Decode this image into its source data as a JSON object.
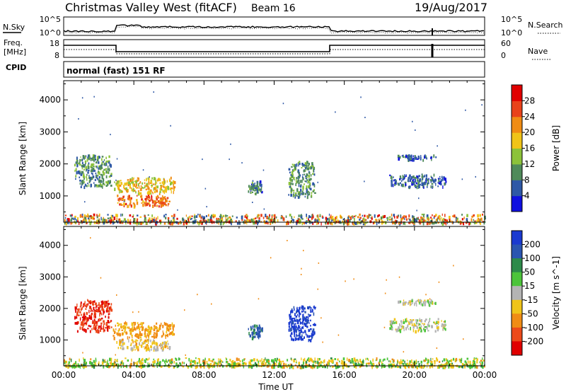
{
  "header": {
    "station": "Christmas Valley West (fitACF)",
    "beam": "Beam 16",
    "date": "19/Aug/2017"
  },
  "strip_labels": {
    "nsky": "N.Sky",
    "freq_line1": "Freq.",
    "freq_line2": "[MHz]",
    "cpid": "CPID",
    "nsearch": "N.Search",
    "nave": "Nave",
    "cpid_value": "normal (fast) 151 RF"
  },
  "noise_axis": {
    "left_ticks": [
      "10^5",
      "10^0"
    ],
    "right_ticks": [
      "10^5",
      "10^0"
    ]
  },
  "freq_axis": {
    "left_ticks": [
      "18",
      "8"
    ],
    "right_ticks": [
      "60",
      "0"
    ]
  },
  "chart_data": [
    {
      "type": "heatmap",
      "title": "Power",
      "ylabel": "Slant Range [km]",
      "xlabel": "Time UT",
      "x_ticks": [
        "00:00",
        "04:00",
        "08:00",
        "12:00",
        "16:00",
        "20:00",
        "00:00"
      ],
      "xlim": [
        0,
        24
      ],
      "y_ticks": [
        1000,
        2000,
        3000,
        4000
      ],
      "ylim": [
        180,
        4600
      ],
      "colorbar": {
        "label": "Power [dB]",
        "ticks": [
          4,
          8,
          12,
          16,
          20,
          24,
          28
        ],
        "colors": [
          "#1010e0",
          "#2e58a6",
          "#4f8a5a",
          "#8cc23a",
          "#f0c419",
          "#f08c14",
          "#e8421a",
          "#e00000"
        ]
      },
      "echo_regions": [
        {
          "t0": 0.6,
          "t1": 2.7,
          "r0": 1300,
          "r1": 2300,
          "value": 10
        },
        {
          "t0": 2.8,
          "t1": 6.3,
          "r0": 1100,
          "r1": 1600,
          "value": 18
        },
        {
          "t0": 3.0,
          "t1": 6.0,
          "r0": 700,
          "r1": 1050,
          "value": 24
        },
        {
          "t0": 10.5,
          "t1": 11.3,
          "r0": 1100,
          "r1": 1500,
          "value": 8
        },
        {
          "t0": 12.8,
          "t1": 14.3,
          "r0": 1000,
          "r1": 2100,
          "value": 10
        },
        {
          "t0": 18.5,
          "t1": 21.8,
          "r0": 1300,
          "r1": 1700,
          "value": 6
        },
        {
          "t0": 19.0,
          "t1": 21.2,
          "r0": 2150,
          "r1": 2300,
          "value": 6
        },
        {
          "t0": 0.0,
          "t1": 24.0,
          "r0": 180,
          "r1": 450,
          "value": 14
        }
      ]
    },
    {
      "type": "heatmap",
      "title": "Velocity",
      "ylabel": "Slant Range [km]",
      "xlabel": "Time UT",
      "x_ticks": [
        "00:00",
        "04:00",
        "08:00",
        "12:00",
        "16:00",
        "20:00",
        "00:00"
      ],
      "xlim": [
        0,
        24
      ],
      "y_ticks": [
        1000,
        2000,
        3000,
        4000
      ],
      "ylim": [
        180,
        4600
      ],
      "colorbar": {
        "label": "Velocity [m s^-1]",
        "ticks": [
          200,
          100,
          50,
          15,
          -15,
          -50,
          -100,
          -200
        ],
        "colors": [
          "#1a3ad0",
          "#2a55b0",
          "#2d8a4a",
          "#4cc43a",
          "#b4b4b4",
          "#f0c419",
          "#f08c14",
          "#ec4a1a",
          "#e00000"
        ]
      },
      "echo_regions": [
        {
          "t0": 0.6,
          "t1": 2.7,
          "r0": 1300,
          "r1": 2300,
          "value": -200
        },
        {
          "t0": 2.8,
          "t1": 6.3,
          "r0": 1100,
          "r1": 1600,
          "value": -60
        },
        {
          "t0": 3.0,
          "t1": 6.0,
          "r0": 700,
          "r1": 1050,
          "value": -30
        },
        {
          "t0": 10.5,
          "t1": 11.3,
          "r0": 1100,
          "r1": 1500,
          "value": 120
        },
        {
          "t0": 12.8,
          "t1": 14.3,
          "r0": 1000,
          "r1": 2100,
          "value": 220
        },
        {
          "t0": 18.5,
          "t1": 21.8,
          "r0": 1300,
          "r1": 1700,
          "value": 0
        },
        {
          "t0": 19.0,
          "t1": 21.2,
          "r0": 2150,
          "r1": 2300,
          "value": 0
        },
        {
          "t0": 0.0,
          "t1": 24.0,
          "r0": 180,
          "r1": 450,
          "value": 30
        }
      ]
    }
  ]
}
